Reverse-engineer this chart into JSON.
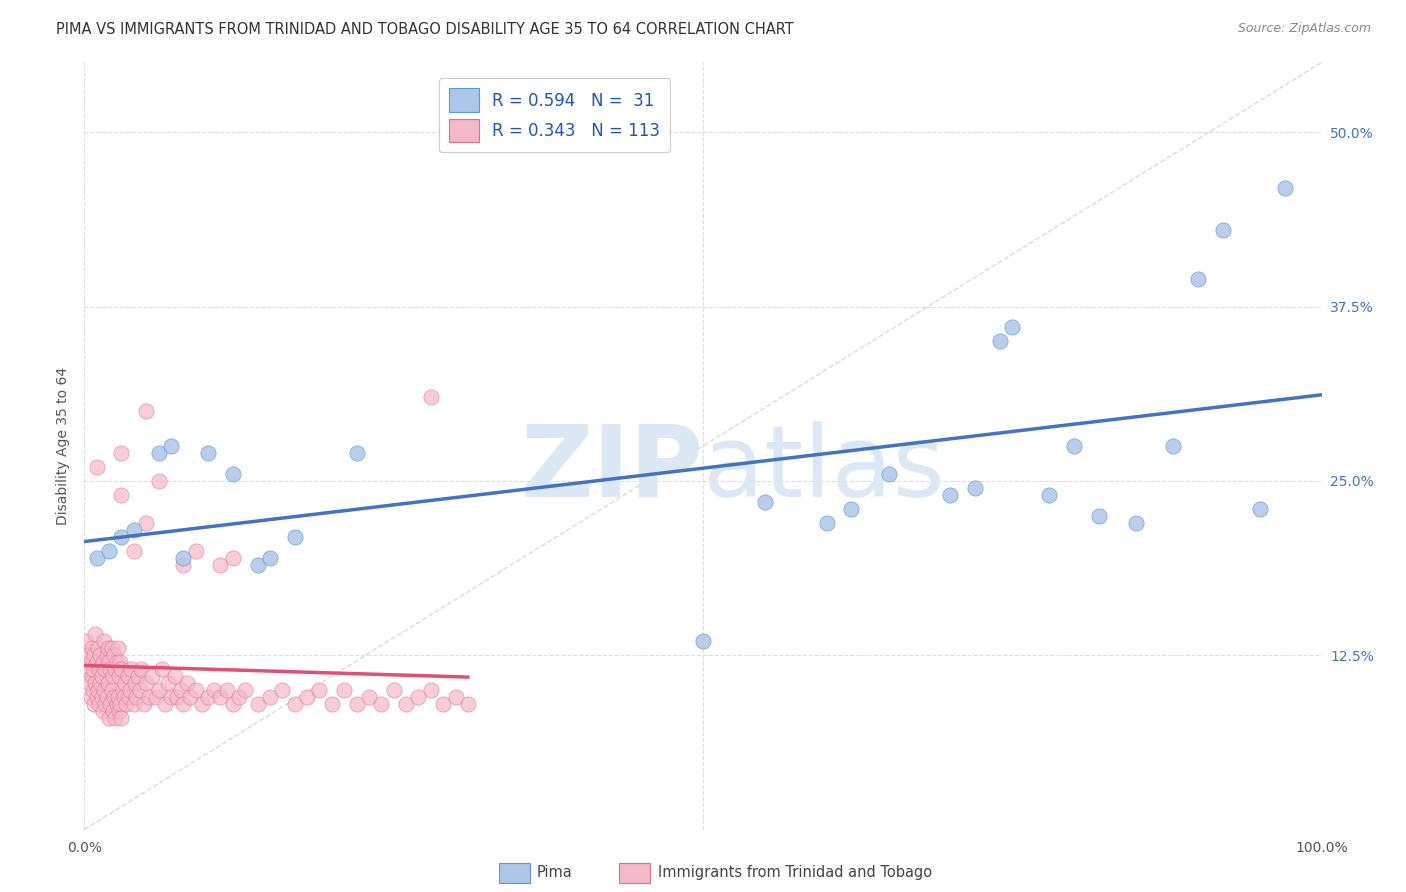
{
  "title": "PIMA VS IMMIGRANTS FROM TRINIDAD AND TOBAGO DISABILITY AGE 35 TO 64 CORRELATION CHART",
  "source": "Source: ZipAtlas.com",
  "ylabel": "Disability Age 35 to 64",
  "xlim": [
    0,
    1
  ],
  "ylim": [
    0,
    0.55
  ],
  "ytick_vals": [
    0.125,
    0.25,
    0.375,
    0.5
  ],
  "ytick_labels": [
    "12.5%",
    "25.0%",
    "37.5%",
    "50.0%"
  ],
  "pima_R": 0.594,
  "pima_N": 31,
  "immigrant_R": 0.343,
  "immigrant_N": 113,
  "pima_color": "#aec6e8",
  "pima_edge_color": "#5b9bd5",
  "pima_line_color": "#4472c4",
  "immigrant_color": "#f4b8c8",
  "immigrant_edge_color": "#e07090",
  "immigrant_line_color": "#e05070",
  "diag_color": "#cccccc",
  "background_color": "#ffffff",
  "grid_color": "#dddddd",
  "watermark_color": "#dce8f3",
  "title_fontsize": 10.5,
  "axis_label_fontsize": 10,
  "tick_fontsize": 10,
  "legend_fontsize": 12,
  "pima_x": [
    0.01,
    0.02,
    0.03,
    0.04,
    0.06,
    0.07,
    0.08,
    0.1,
    0.12,
    0.14,
    0.15,
    0.17,
    0.22,
    0.5,
    0.55,
    0.6,
    0.62,
    0.65,
    0.7,
    0.72,
    0.74,
    0.75,
    0.78,
    0.8,
    0.82,
    0.85,
    0.88,
    0.9,
    0.92,
    0.95,
    0.97
  ],
  "pima_y": [
    0.195,
    0.2,
    0.21,
    0.215,
    0.27,
    0.275,
    0.195,
    0.27,
    0.255,
    0.19,
    0.195,
    0.21,
    0.27,
    0.135,
    0.235,
    0.22,
    0.23,
    0.255,
    0.24,
    0.245,
    0.35,
    0.36,
    0.24,
    0.275,
    0.225,
    0.22,
    0.275,
    0.395,
    0.43,
    0.23,
    0.46
  ],
  "imm_x": [
    0.001,
    0.002,
    0.003,
    0.004,
    0.005,
    0.005,
    0.006,
    0.006,
    0.007,
    0.007,
    0.008,
    0.008,
    0.009,
    0.009,
    0.01,
    0.01,
    0.011,
    0.011,
    0.012,
    0.012,
    0.013,
    0.013,
    0.014,
    0.014,
    0.015,
    0.015,
    0.016,
    0.016,
    0.017,
    0.017,
    0.018,
    0.018,
    0.019,
    0.019,
    0.02,
    0.02,
    0.021,
    0.021,
    0.022,
    0.022,
    0.023,
    0.023,
    0.024,
    0.024,
    0.025,
    0.025,
    0.026,
    0.026,
    0.027,
    0.027,
    0.028,
    0.028,
    0.029,
    0.029,
    0.03,
    0.03,
    0.031,
    0.032,
    0.033,
    0.034,
    0.035,
    0.036,
    0.037,
    0.038,
    0.04,
    0.041,
    0.042,
    0.043,
    0.045,
    0.046,
    0.048,
    0.05,
    0.052,
    0.055,
    0.058,
    0.06,
    0.063,
    0.065,
    0.068,
    0.07,
    0.073,
    0.075,
    0.078,
    0.08,
    0.083,
    0.085,
    0.09,
    0.095,
    0.1,
    0.105,
    0.11,
    0.115,
    0.12,
    0.125,
    0.13,
    0.14,
    0.15,
    0.16,
    0.17,
    0.18,
    0.19,
    0.2,
    0.21,
    0.22,
    0.23,
    0.24,
    0.25,
    0.26,
    0.27,
    0.28,
    0.29,
    0.3,
    0.31
  ],
  "imm_y": [
    0.135,
    0.125,
    0.115,
    0.105,
    0.095,
    0.12,
    0.11,
    0.13,
    0.1,
    0.115,
    0.09,
    0.125,
    0.105,
    0.14,
    0.095,
    0.12,
    0.1,
    0.13,
    0.09,
    0.115,
    0.105,
    0.125,
    0.095,
    0.11,
    0.085,
    0.12,
    0.1,
    0.135,
    0.09,
    0.115,
    0.095,
    0.125,
    0.105,
    0.13,
    0.08,
    0.12,
    0.09,
    0.115,
    0.1,
    0.13,
    0.085,
    0.11,
    0.095,
    0.125,
    0.08,
    0.115,
    0.09,
    0.12,
    0.095,
    0.13,
    0.085,
    0.11,
    0.09,
    0.12,
    0.08,
    0.115,
    0.1,
    0.095,
    0.105,
    0.09,
    0.11,
    0.095,
    0.1,
    0.115,
    0.09,
    0.105,
    0.095,
    0.11,
    0.1,
    0.115,
    0.09,
    0.105,
    0.095,
    0.11,
    0.095,
    0.1,
    0.115,
    0.09,
    0.105,
    0.095,
    0.11,
    0.095,
    0.1,
    0.09,
    0.105,
    0.095,
    0.1,
    0.09,
    0.095,
    0.1,
    0.095,
    0.1,
    0.09,
    0.095,
    0.1,
    0.09,
    0.095,
    0.1,
    0.09,
    0.095,
    0.1,
    0.09,
    0.1,
    0.09,
    0.095,
    0.09,
    0.1,
    0.09,
    0.095,
    0.1,
    0.09,
    0.095,
    0.09
  ],
  "imm_outlier_x": [
    0.01,
    0.03,
    0.03,
    0.04,
    0.05,
    0.05,
    0.06,
    0.08,
    0.09,
    0.11,
    0.12,
    0.28
  ],
  "imm_outlier_y": [
    0.26,
    0.24,
    0.27,
    0.2,
    0.3,
    0.22,
    0.25,
    0.19,
    0.2,
    0.19,
    0.195,
    0.31
  ]
}
